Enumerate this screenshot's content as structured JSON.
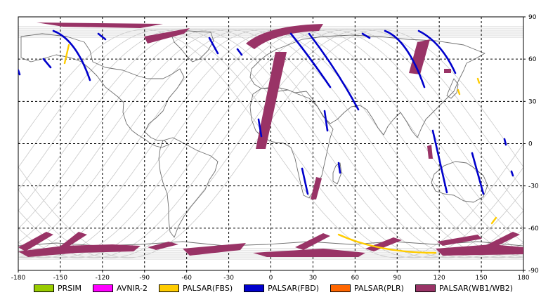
{
  "chart_data": {
    "type": "map",
    "title": "",
    "xlabel": "",
    "ylabel": "",
    "xlim": [
      -180,
      180
    ],
    "ylim": [
      -90,
      90
    ],
    "x_ticks": [
      "-180",
      "-150",
      "-120",
      "-90",
      "-60",
      "-30",
      "0",
      "30",
      "60",
      "90",
      "120",
      "150",
      "180"
    ],
    "y_ticks": [
      "90",
      "60",
      "30",
      "0",
      "-30",
      "-60",
      "-90"
    ],
    "grid": true,
    "legend_position": "bottom",
    "legend": [
      {
        "label": "PRSIM",
        "color": "#99cc00"
      },
      {
        "label": "AVNIR-2",
        "color": "#ff00ff"
      },
      {
        "label": "PALSAR(FBS)",
        "color": "#ffcc00"
      },
      {
        "label": "PALSAR(FBD)",
        "color": "#0000cc"
      },
      {
        "label": "PALSAR(PLR)",
        "color": "#ff6600"
      },
      {
        "label": "PALSAR(WB1/WB2)",
        "color": "#993366"
      }
    ]
  }
}
